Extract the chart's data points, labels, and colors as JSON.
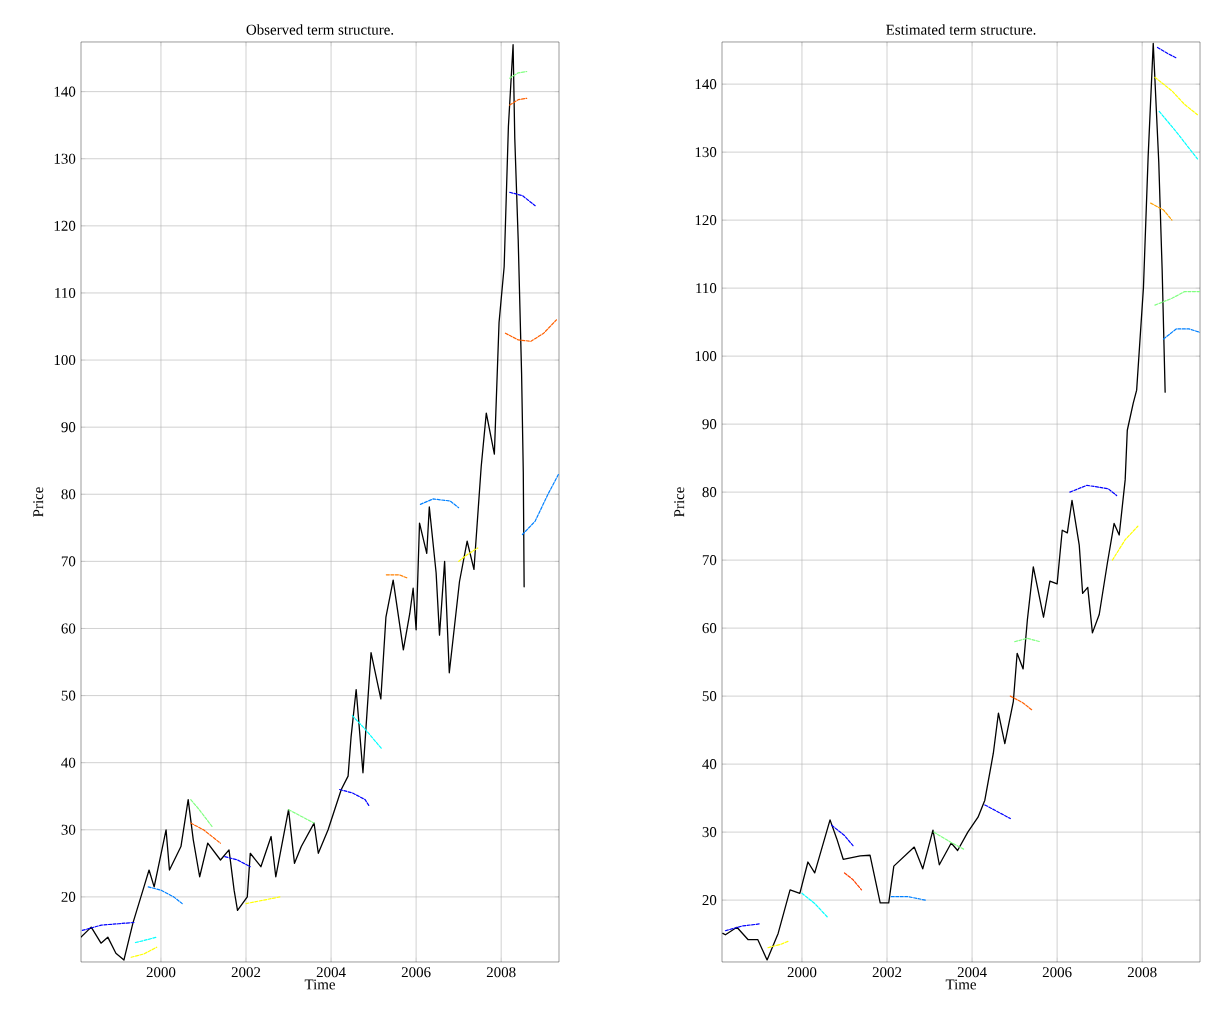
{
  "chart_data": [
    {
      "type": "line",
      "title": "Observed term structure.",
      "xlabel": "Time",
      "ylabel": "Price",
      "xlim": [
        1998.12,
        2009.36
      ],
      "ylim": [
        10.3,
        147.4
      ],
      "xticks": [
        2000,
        2002,
        2004,
        2006,
        2008
      ],
      "yticks": [
        20,
        30,
        40,
        50,
        60,
        70,
        80,
        90,
        100,
        110,
        120,
        130,
        140
      ],
      "grid": true,
      "marker": "none",
      "series": [
        {
          "color": "#000000",
          "line_style": "solid",
          "x": [
            1998.12,
            1998.36,
            1998.59,
            1998.75,
            1998.94,
            1999.13,
            1999.34,
            1999.6,
            1999.72,
            1999.84,
            2000.12,
            2000.2,
            2000.47,
            2000.64,
            2000.76,
            2000.91,
            2001.1,
            2001.4,
            2001.6,
            2001.72,
            2001.8,
            2002.03,
            2002.1,
            2002.35,
            2002.59,
            2002.7,
            2003.0,
            2003.14,
            2003.3,
            2003.6,
            2003.7,
            2003.93,
            2004.24,
            2004.4,
            2004.47,
            2004.59,
            2004.75,
            2004.94,
            2005.17,
            2005.29,
            2005.46,
            2005.7,
            2005.85,
            2005.93,
            2006.0,
            2006.08,
            2006.25,
            2006.31,
            2006.47,
            2006.55,
            2006.67,
            2006.78,
            2007.02,
            2007.2,
            2007.36,
            2007.53,
            2007.65,
            2007.84,
            2007.95,
            2008.07,
            2008.17,
            2008.28,
            2008.32,
            2008.4,
            2008.48,
            2008.52,
            2008.54
          ],
          "values": [
            14,
            15.5,
            13.1,
            14,
            11.6,
            10.6,
            16.1,
            21.5,
            24,
            21.5,
            30,
            24,
            27.5,
            34.5,
            28.5,
            23,
            28,
            25.5,
            27,
            21,
            18,
            20,
            26.5,
            24.5,
            29,
            23,
            33,
            25,
            27.5,
            31,
            26.5,
            30,
            36,
            38,
            43.8,
            50.9,
            38.5,
            56.4,
            49.5,
            61.7,
            67.2,
            56.8,
            62.2,
            66,
            59.8,
            75.7,
            71.2,
            78.1,
            68.3,
            59,
            70,
            53.4,
            67,
            73,
            68.8,
            84.1,
            92.1,
            86,
            105.6,
            113.9,
            134.8,
            147,
            133,
            118,
            98,
            83.2,
            66.2
          ]
        },
        {
          "color": "#0000ff",
          "line_style": "dashed",
          "x": [
            1998.15,
            1998.6,
            1999.0,
            1999.4
          ],
          "values": [
            15,
            15.8,
            16,
            16.2
          ]
        },
        {
          "color": "#00ffff",
          "line_style": "dashed",
          "x": [
            1999.4,
            1999.6,
            1999.9
          ],
          "values": [
            13.2,
            13.5,
            14
          ]
        },
        {
          "color": "#ffff00",
          "line_style": "dashed",
          "x": [
            1999.3,
            1999.6,
            1999.9
          ],
          "values": [
            11,
            11.5,
            12.5
          ]
        },
        {
          "color": "#0080ff",
          "line_style": "dashed",
          "x": [
            1999.7,
            2000.0,
            2000.3,
            2000.5
          ],
          "values": [
            21.5,
            21,
            20,
            19
          ]
        },
        {
          "color": "#80ff80",
          "line_style": "dashed",
          "x": [
            2000.7,
            2000.9,
            2001.2
          ],
          "values": [
            34.5,
            33,
            30.5
          ]
        },
        {
          "color": "#ff6000",
          "line_style": "dashed",
          "x": [
            2000.7,
            2001.0,
            2001.4
          ],
          "values": [
            31,
            30,
            28
          ]
        },
        {
          "color": "#0000ff",
          "line_style": "dashed",
          "x": [
            2001.5,
            2001.8,
            2002.1
          ],
          "values": [
            26,
            25.5,
            24.5
          ]
        },
        {
          "color": "#ffff00",
          "line_style": "dashed",
          "x": [
            2002.0,
            2002.4,
            2002.8
          ],
          "values": [
            19,
            19.5,
            20
          ]
        },
        {
          "color": "#80ff80",
          "line_style": "dashed",
          "x": [
            2003.0,
            2003.3,
            2003.6
          ],
          "values": [
            33,
            32,
            31
          ]
        },
        {
          "color": "#0000ff",
          "line_style": "dashed",
          "x": [
            2004.2,
            2004.5,
            2004.8,
            2004.9
          ],
          "values": [
            36,
            35.5,
            34.5,
            33.5
          ]
        },
        {
          "color": "#00ffff",
          "line_style": "dashed",
          "x": [
            2004.5,
            2004.8,
            2005.2
          ],
          "values": [
            47,
            45,
            42
          ]
        },
        {
          "color": "#ff8000",
          "line_style": "dashed",
          "x": [
            2005.3,
            2005.6,
            2005.8
          ],
          "values": [
            68,
            68,
            67.5
          ]
        },
        {
          "color": "#0080ff",
          "line_style": "dashed",
          "x": [
            2006.1,
            2006.4,
            2006.8,
            2007.0
          ],
          "values": [
            78.5,
            79.3,
            79,
            78
          ]
        },
        {
          "color": "#ffff00",
          "line_style": "dashed",
          "x": [
            2007.0,
            2007.2,
            2007.45
          ],
          "values": [
            70,
            71,
            72
          ]
        },
        {
          "color": "#0080ff",
          "line_style": "dashed",
          "x": [
            2008.5,
            2008.8,
            2009.1,
            2009.35
          ],
          "values": [
            74,
            76,
            80,
            83
          ]
        },
        {
          "color": "#80ff80",
          "line_style": "dashed",
          "x": [
            2008.2,
            2008.4,
            2008.6
          ],
          "values": [
            142,
            142.8,
            143
          ]
        },
        {
          "color": "#ff6000",
          "line_style": "dashed",
          "x": [
            2008.2,
            2008.4,
            2008.6
          ],
          "values": [
            138,
            138.8,
            139
          ]
        },
        {
          "color": "#0000ff",
          "line_style": "dashed",
          "x": [
            2008.2,
            2008.5,
            2008.8
          ],
          "values": [
            125,
            124.5,
            123
          ]
        },
        {
          "color": "#ff6000",
          "line_style": "dashed",
          "x": [
            2008.1,
            2008.4,
            2008.7,
            2009.0,
            2009.3
          ],
          "values": [
            104,
            103,
            102.8,
            104,
            106
          ]
        }
      ]
    },
    {
      "type": "line",
      "title": "Estimated term structure.",
      "xlabel": "Time",
      "ylabel": "Price",
      "xlim": [
        1998.12,
        2009.36
      ],
      "ylim": [
        10.9,
        146.2
      ],
      "xticks": [
        2000,
        2002,
        2004,
        2006,
        2008
      ],
      "yticks": [
        20,
        30,
        40,
        50,
        60,
        70,
        80,
        90,
        100,
        110,
        120,
        130,
        140
      ],
      "grid": true,
      "marker": "none",
      "series": [
        {
          "color": "#000000",
          "line_style": "solid",
          "x": [
            1998.14,
            1998.2,
            1998.47,
            1998.73,
            1998.96,
            1999.18,
            1999.44,
            1999.72,
            1999.95,
            2000.14,
            2000.3,
            2000.66,
            2000.82,
            2000.97,
            2001.37,
            2001.6,
            2001.84,
            2002.04,
            2002.16,
            2002.64,
            2002.84,
            2003.08,
            2003.23,
            2003.51,
            2003.66,
            2003.9,
            2004.14,
            2004.3,
            2004.5,
            2004.62,
            2004.77,
            2004.97,
            2005.06,
            2005.2,
            2005.3,
            2005.44,
            2005.68,
            2005.83,
            2006.0,
            2006.12,
            2006.24,
            2006.35,
            2006.52,
            2006.6,
            2006.72,
            2006.83,
            2006.99,
            2007.18,
            2007.34,
            2007.46,
            2007.6,
            2007.65,
            2007.79,
            2007.87,
            2008.03,
            2008.14,
            2008.26,
            2008.39,
            2008.47,
            2008.54
          ],
          "values": [
            15.1,
            14.9,
            16,
            14.2,
            14.2,
            11.2,
            15.1,
            21.5,
            21,
            25.6,
            24,
            31.8,
            29,
            26,
            26.5,
            26.6,
            19.6,
            19.6,
            25,
            27.8,
            24.6,
            30.3,
            25.2,
            28.4,
            27.3,
            30,
            32.2,
            34.7,
            41.6,
            47.5,
            43,
            49.2,
            56.3,
            54,
            61.2,
            69,
            61.6,
            66.9,
            66.5,
            74.4,
            74,
            78.8,
            72.2,
            65.1,
            66,
            59.3,
            62,
            69.5,
            75.4,
            73.7,
            81.8,
            89.1,
            93.1,
            95,
            110.1,
            129.3,
            146,
            128.5,
            112.6,
            94.7
          ]
        },
        {
          "color": "#0000ff",
          "line_style": "dashed",
          "x": [
            1998.2,
            1998.6,
            1999.0
          ],
          "values": [
            15.5,
            16.2,
            16.5
          ]
        },
        {
          "color": "#ffff00",
          "line_style": "dashed",
          "x": [
            1999.2,
            1999.5,
            1999.7
          ],
          "values": [
            13,
            13.5,
            14
          ]
        },
        {
          "color": "#00ffff",
          "line_style": "dashed",
          "x": [
            2000.0,
            2000.3,
            2000.6
          ],
          "values": [
            21,
            19.5,
            17.5
          ]
        },
        {
          "color": "#0000ff",
          "line_style": "dashed",
          "x": [
            2000.7,
            2001.0,
            2001.2
          ],
          "values": [
            31,
            29.5,
            28
          ]
        },
        {
          "color": "#ff4000",
          "line_style": "dashed",
          "x": [
            2001.0,
            2001.2,
            2001.4
          ],
          "values": [
            24,
            23,
            21.5
          ]
        },
        {
          "color": "#0080ff",
          "line_style": "dashed",
          "x": [
            2002.1,
            2002.5,
            2002.9
          ],
          "values": [
            20.5,
            20.5,
            20
          ]
        },
        {
          "color": "#80ff80",
          "line_style": "dashed",
          "x": [
            2003.1,
            2003.5,
            2003.8
          ],
          "values": [
            30,
            28.5,
            27.5
          ]
        },
        {
          "color": "#0000ff",
          "line_style": "dashed",
          "x": [
            2004.3,
            2004.6,
            2004.9
          ],
          "values": [
            34,
            33,
            32
          ]
        },
        {
          "color": "#ff6000",
          "line_style": "dashed",
          "x": [
            2004.9,
            2005.2,
            2005.4
          ],
          "values": [
            50,
            49,
            48
          ]
        },
        {
          "color": "#80ff80",
          "line_style": "dashed",
          "x": [
            2005.0,
            2005.3,
            2005.6
          ],
          "values": [
            58,
            58.5,
            58
          ]
        },
        {
          "color": "#0000ff",
          "line_style": "dashed",
          "x": [
            2006.3,
            2006.7,
            2007.2,
            2007.4
          ],
          "values": [
            80,
            81,
            80.5,
            79.5
          ]
        },
        {
          "color": "#ffff00",
          "line_style": "dashed",
          "x": [
            2007.3,
            2007.6,
            2007.9
          ],
          "values": [
            70,
            73,
            75
          ]
        },
        {
          "color": "#0000ff",
          "line_style": "dashed",
          "x": [
            2008.36,
            2008.6,
            2008.82
          ],
          "values": [
            145.4,
            144.5,
            143.8
          ]
        },
        {
          "color": "#ffff00",
          "line_style": "dashed",
          "x": [
            2008.3,
            2008.7,
            2009.0,
            2009.3
          ],
          "values": [
            141,
            139,
            137,
            135.5
          ]
        },
        {
          "color": "#00ffff",
          "line_style": "dashed",
          "x": [
            2008.4,
            2008.8,
            2009.3
          ],
          "values": [
            136,
            133,
            129
          ]
        },
        {
          "color": "#ffa000",
          "line_style": "dashed",
          "x": [
            2008.2,
            2008.5,
            2008.7
          ],
          "values": [
            122.5,
            121.5,
            120
          ]
        },
        {
          "color": "#80ff80",
          "line_style": "dashed",
          "x": [
            2008.3,
            2008.7,
            2009.0,
            2009.35
          ],
          "values": [
            107.5,
            108.5,
            109.5,
            109.5
          ]
        },
        {
          "color": "#0080ff",
          "line_style": "dashed",
          "x": [
            2008.5,
            2008.8,
            2009.1,
            2009.36
          ],
          "values": [
            102.5,
            104,
            104,
            103.5
          ]
        }
      ]
    }
  ]
}
